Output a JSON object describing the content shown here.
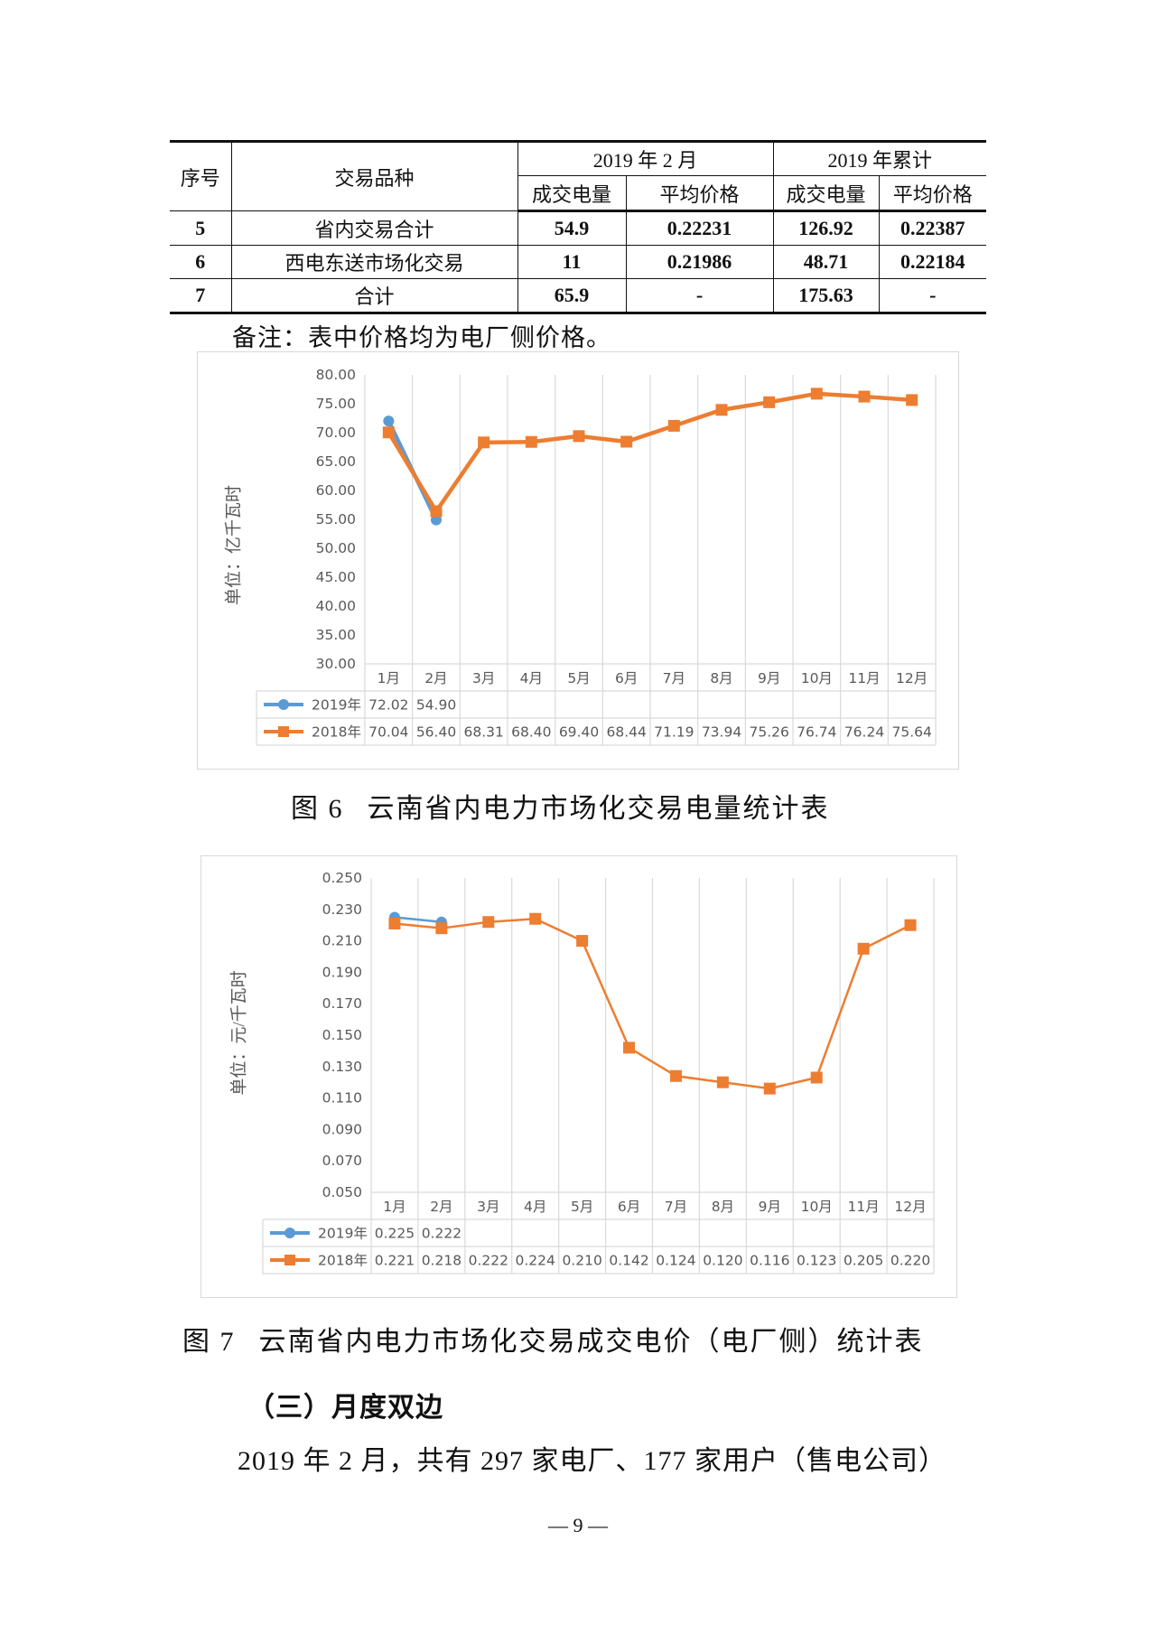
{
  "table": {
    "headers": {
      "seq": "序号",
      "type": "交易品种",
      "group_month": "2019 年 2 月",
      "group_ytd": "2019 年累计",
      "sub_volume": "成交电量",
      "sub_price": "平均价格"
    },
    "rows": [
      {
        "seq": "5",
        "name": "省内交易合计",
        "month_volume": "54.9",
        "month_price": "0.22231",
        "ytd_volume": "126.92",
        "ytd_price": "0.22387"
      },
      {
        "seq": "6",
        "name": "西电东送市场化交易",
        "month_volume": "11",
        "month_price": "0.21986",
        "ytd_volume": "48.71",
        "ytd_price": "0.22184"
      },
      {
        "seq": "7",
        "name": "合计",
        "month_volume": "65.9",
        "month_price": "-",
        "ytd_volume": "175.63",
        "ytd_price": "-"
      }
    ]
  },
  "note": "备注：表中价格均为电厂侧价格。",
  "figure6": {
    "number": "图 6",
    "title": "云南省内电力市场化交易电量统计表"
  },
  "figure7": {
    "number": "图 7",
    "title": "云南省内电力市场化交易成交电价（电厂侧）统计表"
  },
  "section_heading": "（三）月度双边",
  "paragraph": "2019 年 2 月，共有 297 家电厂、177 家用户（售电公司）",
  "page_number": "— 9 —",
  "colors": {
    "series_2019": "#5b9bd5",
    "series_2018": "#ed7d31",
    "grid": "#d9d9d9",
    "axis_text": "#595959"
  },
  "chart_data": [
    {
      "type": "line",
      "title": "云南省内电力市场化交易电量统计表",
      "xlabel": "",
      "ylabel": "单位：亿千瓦时",
      "categories": [
        "1月",
        "2月",
        "3月",
        "4月",
        "5月",
        "6月",
        "7月",
        "8月",
        "9月",
        "10月",
        "11月",
        "12月"
      ],
      "series": [
        {
          "name": "2019年",
          "marker": "circle",
          "values": [
            72.02,
            54.9,
            null,
            null,
            null,
            null,
            null,
            null,
            null,
            null,
            null,
            null
          ],
          "labels": [
            "72.02",
            "54.90",
            "",
            "",
            "",
            "",
            "",
            "",
            "",
            "",
            "",
            ""
          ]
        },
        {
          "name": "2018年",
          "marker": "square",
          "values": [
            70.04,
            56.4,
            68.31,
            68.4,
            69.4,
            68.44,
            71.19,
            73.94,
            75.26,
            76.74,
            76.24,
            75.64
          ],
          "labels": [
            "70.04",
            "56.40",
            "68.31",
            "68.40",
            "69.40",
            "68.44",
            "71.19",
            "73.94",
            "75.26",
            "76.74",
            "76.24",
            "75.64"
          ]
        }
      ],
      "ylim": [
        30,
        80
      ],
      "yticks": [
        "80.00",
        "75.00",
        "70.00",
        "65.00",
        "60.00",
        "55.00",
        "50.00",
        "45.00",
        "40.00",
        "35.00",
        "30.00"
      ],
      "grid": "vertical",
      "legend": "data-table below plot"
    },
    {
      "type": "line",
      "title": "云南省内电力市场化交易成交电价（电厂侧）统计表",
      "xlabel": "",
      "ylabel": "单位：元/千瓦时",
      "categories": [
        "1月",
        "2月",
        "3月",
        "4月",
        "5月",
        "6月",
        "7月",
        "8月",
        "9月",
        "10月",
        "11月",
        "12月"
      ],
      "series": [
        {
          "name": "2019年",
          "marker": "circle",
          "values": [
            0.225,
            0.222,
            null,
            null,
            null,
            null,
            null,
            null,
            null,
            null,
            null,
            null
          ],
          "labels": [
            "0.225",
            "0.222",
            "",
            "",
            "",
            "",
            "",
            "",
            "",
            "",
            "",
            ""
          ]
        },
        {
          "name": "2018年",
          "marker": "square",
          "values": [
            0.221,
            0.218,
            0.222,
            0.224,
            0.21,
            0.142,
            0.124,
            0.12,
            0.116,
            0.123,
            0.205,
            0.22
          ],
          "labels": [
            "0.221",
            "0.218",
            "0.222",
            "0.224",
            "0.210",
            "0.142",
            "0.124",
            "0.120",
            "0.116",
            "0.123",
            "0.205",
            "0.220"
          ]
        }
      ],
      "ylim": [
        0.05,
        0.25
      ],
      "yticks": [
        "0.250",
        "0.230",
        "0.210",
        "0.190",
        "0.170",
        "0.150",
        "0.130",
        "0.110",
        "0.090",
        "0.070",
        "0.050"
      ],
      "grid": "vertical",
      "legend": "data-table below plot"
    }
  ]
}
